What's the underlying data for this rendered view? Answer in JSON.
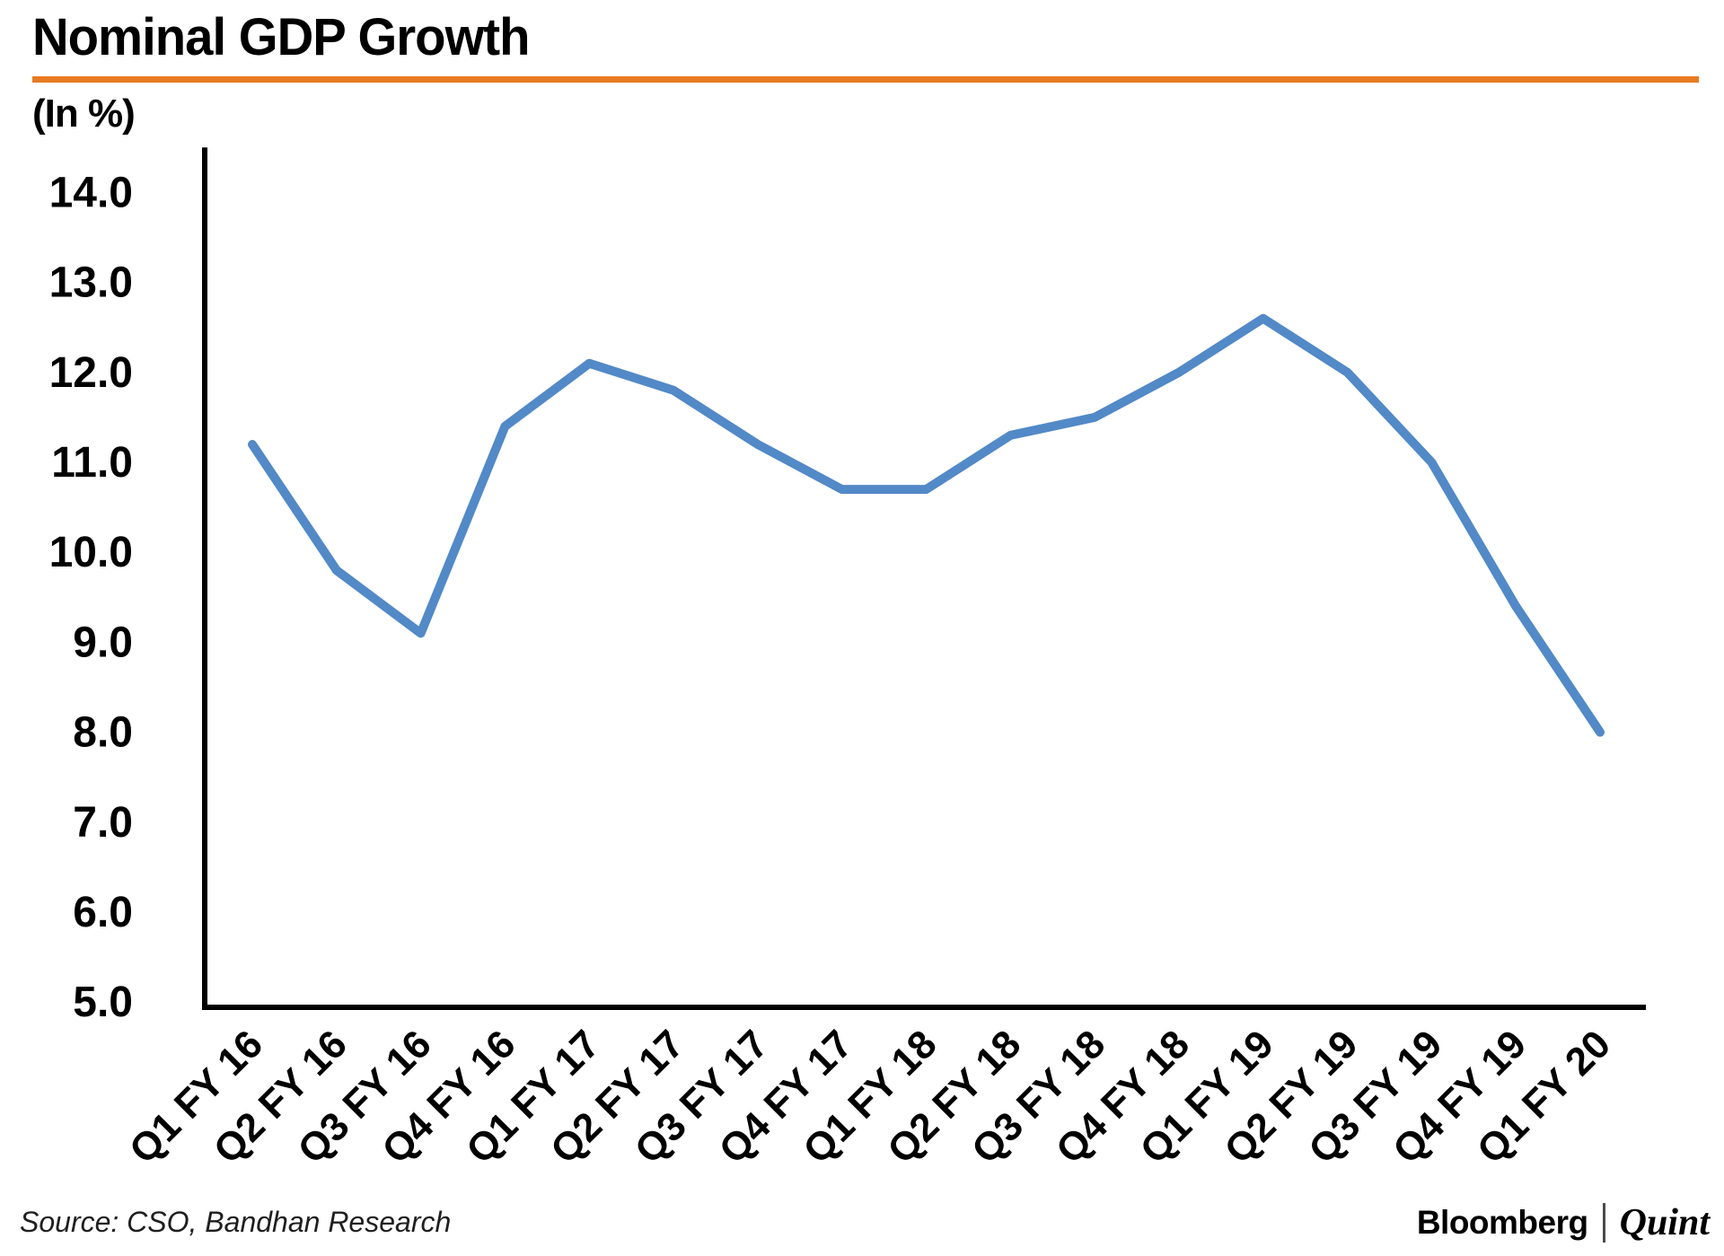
{
  "page": {
    "title": "Nominal GDP Growth",
    "unit_label": "(In %)"
  },
  "chart_data": {
    "type": "line",
    "title": "Nominal GDP Growth",
    "unit_label": "(In %)",
    "categories": [
      "Q1 FY 16",
      "Q2 FY 16",
      "Q3 FY 16",
      "Q4 FY 16",
      "Q1 FY 17",
      "Q2 FY 17",
      "Q3 FY 17",
      "Q4 FY 17",
      "Q1 FY 18",
      "Q2 FY 18",
      "Q3 FY 18",
      "Q4 FY 18",
      "Q1 FY 19",
      "Q2 FY 19",
      "Q3 FY 19",
      "Q4 FY 19",
      "Q1 FY 20"
    ],
    "values": [
      11.2,
      9.8,
      9.1,
      11.4,
      12.1,
      11.8,
      11.2,
      10.7,
      10.7,
      11.3,
      11.5,
      12.0,
      12.6,
      12.0,
      11.0,
      9.4,
      8.0
    ],
    "yticks": [
      14.0,
      13.0,
      12.0,
      11.0,
      10.0,
      9.0,
      8.0,
      7.0,
      6.0,
      5.0
    ],
    "ylim": [
      5.0,
      14.5
    ],
    "xlabel": "",
    "ylabel": "(In %)",
    "grid": "off",
    "legend": "none",
    "line_color": "#5289C7",
    "axis_color": "#000000",
    "accent_color": "#E87B22"
  },
  "footer": {
    "source": "Source: CSO, Bandhan Research",
    "brand": {
      "bloomberg": "Bloomberg",
      "quint": "Quint"
    }
  }
}
